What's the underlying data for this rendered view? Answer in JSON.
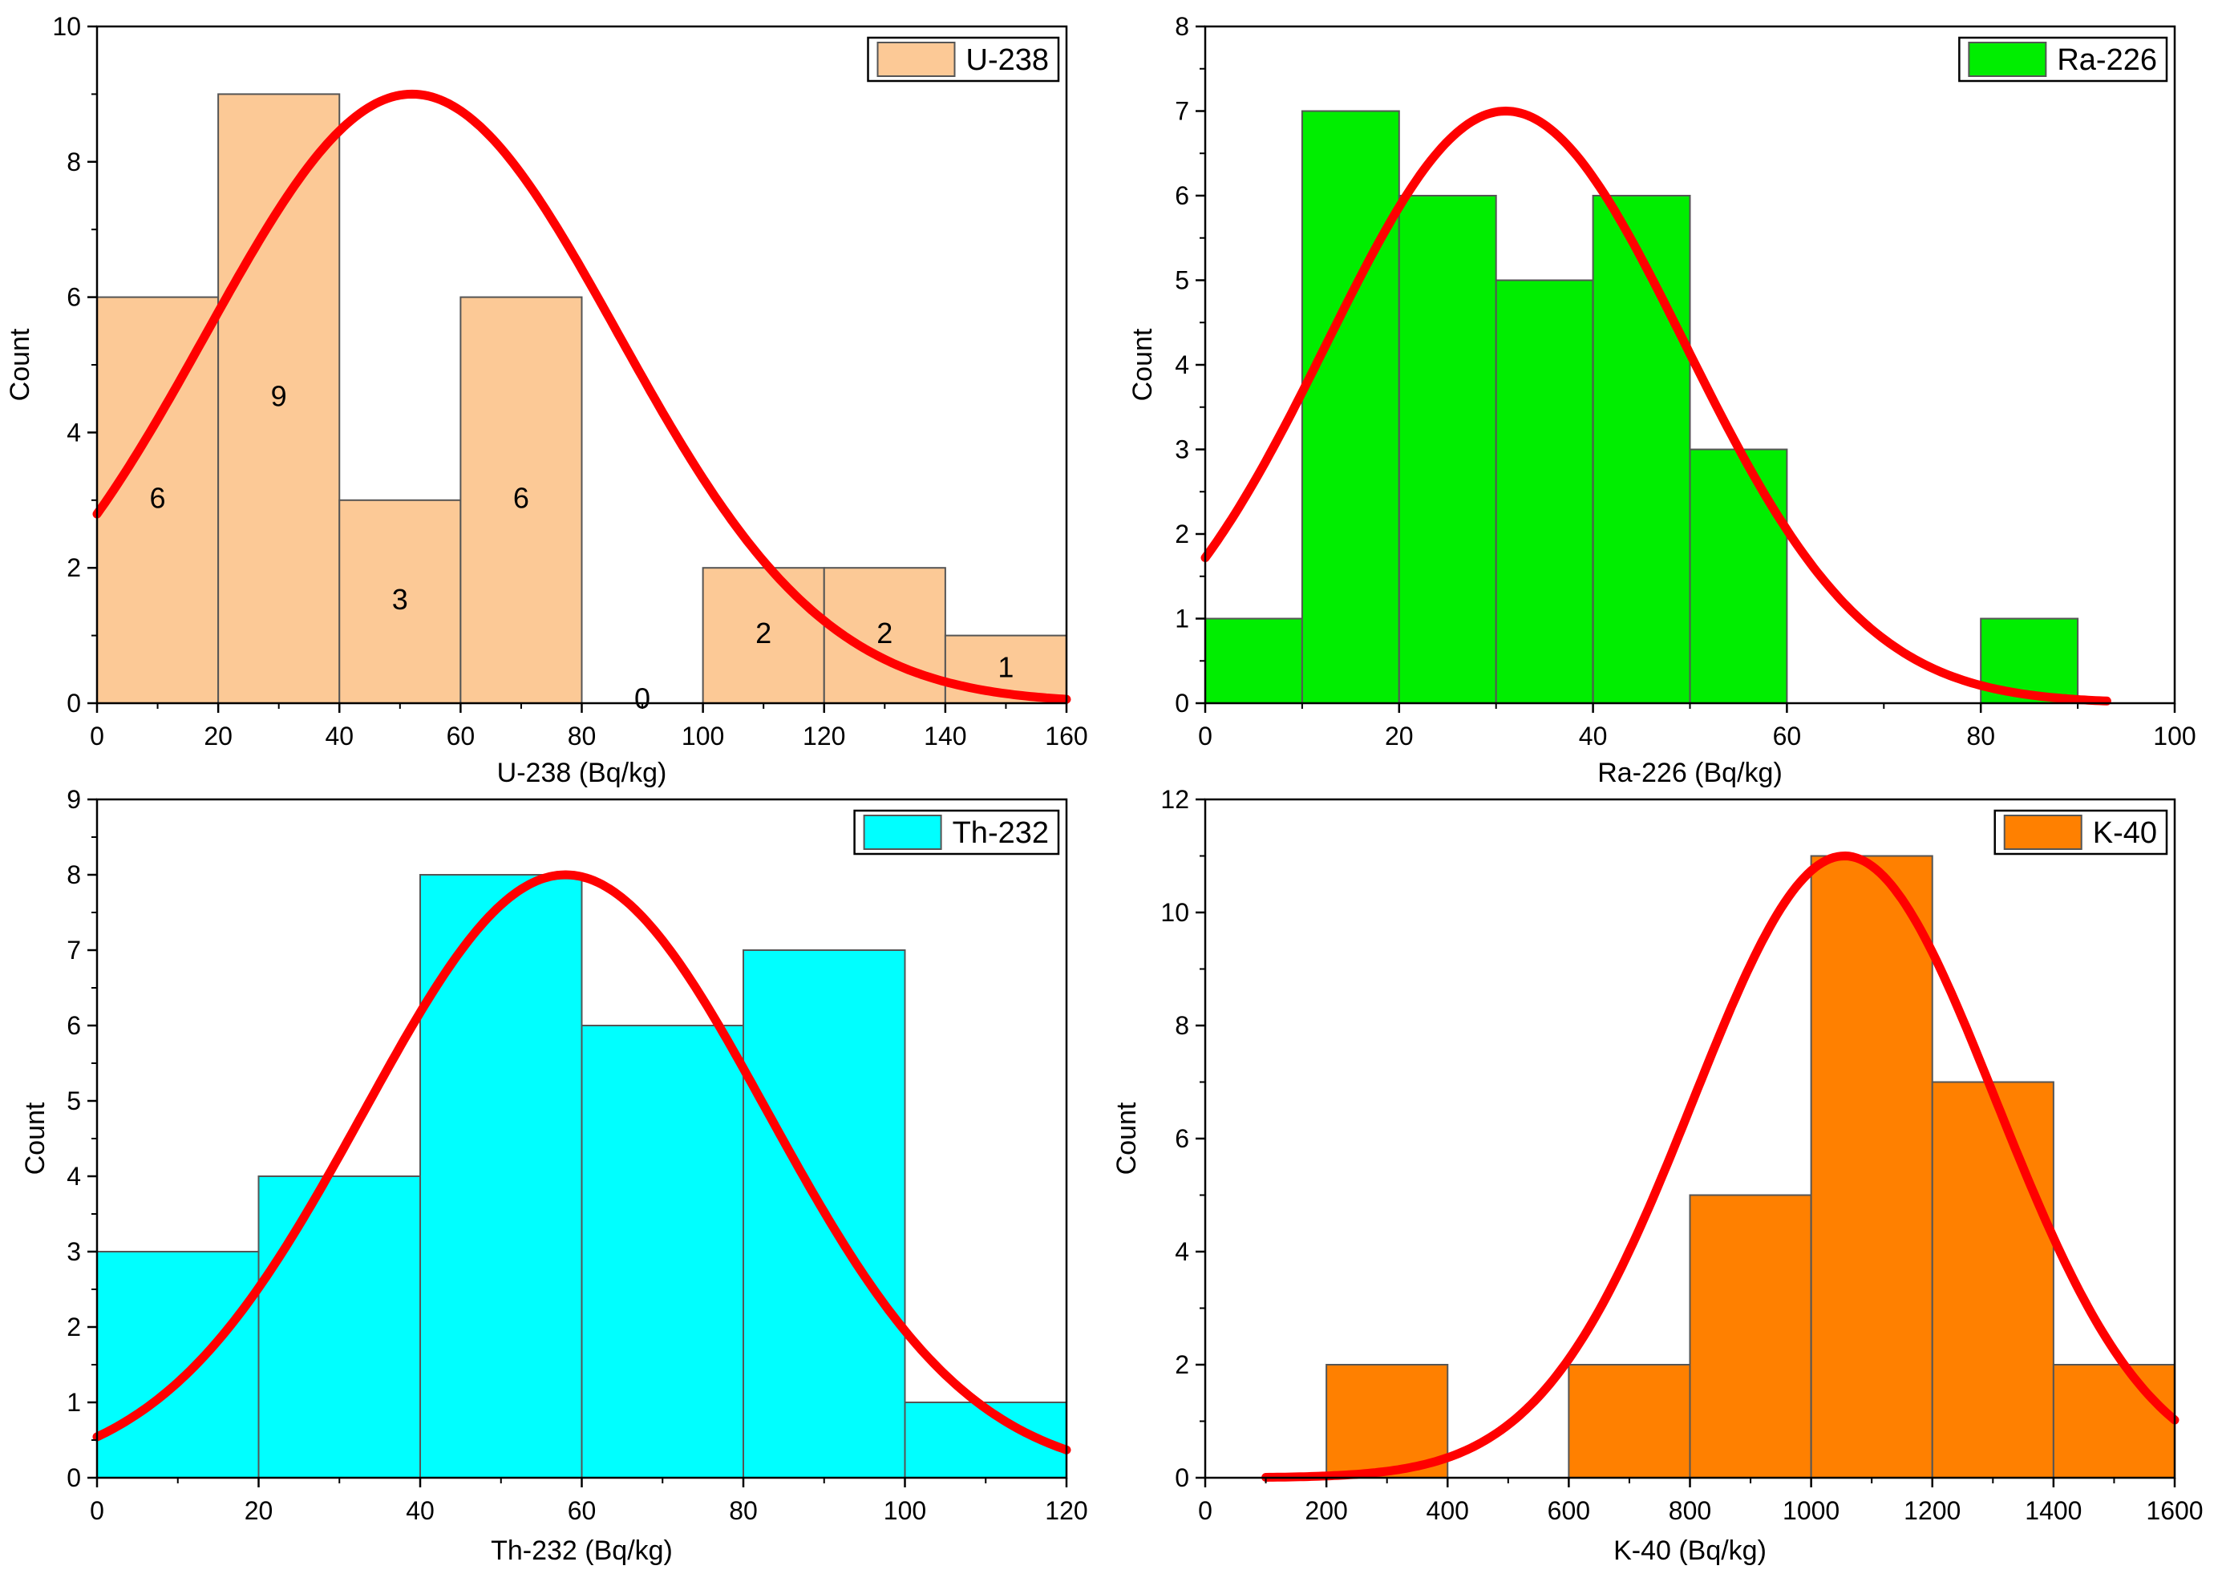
{
  "chart_data": [
    {
      "type": "bar",
      "subtype": "histogram",
      "panel": "top-left",
      "legend": "U-238",
      "legend_position": "top-right",
      "xlabel": "U-238 (Bq/kg)",
      "ylabel": "Count",
      "xlim": [
        0,
        160
      ],
      "ylim": [
        0,
        10
      ],
      "x_ticks": [
        0,
        20,
        40,
        60,
        80,
        100,
        120,
        140,
        160
      ],
      "y_ticks": [
        0,
        2,
        4,
        6,
        8,
        10
      ],
      "x_tick_labels": [
        "0",
        "20",
        "40",
        "60",
        "80",
        "100",
        "120",
        "140",
        "160"
      ],
      "y_tick_labels": [
        "0",
        "2",
        "4",
        "6",
        "8",
        "10"
      ],
      "bins": [
        [
          0,
          20
        ],
        [
          20,
          40
        ],
        [
          40,
          60
        ],
        [
          60,
          80
        ],
        [
          80,
          100
        ],
        [
          100,
          120
        ],
        [
          120,
          140
        ],
        [
          140,
          160
        ]
      ],
      "values": [
        6,
        9,
        3,
        6,
        0,
        2,
        2,
        1
      ],
      "data_labels": [
        "6",
        "9",
        "3",
        "6",
        "0",
        "2",
        "2",
        "1"
      ],
      "fill_color": "#fcc996",
      "fit": {
        "type": "normal",
        "mean": 52,
        "sd": 34,
        "peak": 9,
        "x_range": [
          0,
          160
        ],
        "color": "#ff0000"
      }
    },
    {
      "type": "bar",
      "subtype": "histogram",
      "panel": "top-right",
      "legend": "Ra-226",
      "legend_position": "top-right",
      "xlabel": "Ra-226 (Bq/kg)",
      "ylabel": "Count",
      "xlim": [
        0,
        100
      ],
      "ylim": [
        0,
        8
      ],
      "x_ticks": [
        0,
        20,
        40,
        60,
        80,
        100
      ],
      "y_ticks": [
        0,
        1,
        2,
        3,
        4,
        5,
        6,
        7,
        8
      ],
      "x_tick_labels": [
        "0",
        "20",
        "40",
        "60",
        "80",
        "100"
      ],
      "y_tick_labels": [
        "0",
        "1",
        "2",
        "3",
        "4",
        "5",
        "6",
        "7",
        "8"
      ],
      "bins": [
        [
          0,
          10
        ],
        [
          10,
          20
        ],
        [
          20,
          30
        ],
        [
          30,
          40
        ],
        [
          40,
          50
        ],
        [
          50,
          60
        ],
        [
          60,
          70
        ],
        [
          70,
          80
        ],
        [
          80,
          90
        ]
      ],
      "values": [
        1,
        7,
        6,
        5,
        6,
        3,
        0,
        0,
        1
      ],
      "fill_color": "#00ee00",
      "fit": {
        "type": "normal",
        "mean": 31,
        "sd": 18.5,
        "peak": 7,
        "x_range": [
          0,
          93
        ],
        "color": "#ff0000"
      }
    },
    {
      "type": "bar",
      "subtype": "histogram",
      "panel": "bottom-left",
      "legend": "Th-232",
      "legend_position": "top-right",
      "xlabel": "Th-232 (Bq/kg)",
      "ylabel": "Count",
      "xlim": [
        0,
        120
      ],
      "ylim": [
        0,
        9
      ],
      "x_ticks": [
        0,
        20,
        40,
        60,
        80,
        100,
        120
      ],
      "y_ticks": [
        0,
        1,
        2,
        3,
        4,
        5,
        6,
        7,
        8,
        9
      ],
      "x_tick_labels": [
        "0",
        "20",
        "40",
        "60",
        "80",
        "100",
        "120"
      ],
      "y_tick_labels": [
        "0",
        "1",
        "2",
        "3",
        "4",
        "5",
        "6",
        "7",
        "8",
        "9"
      ],
      "bins": [
        [
          0,
          20
        ],
        [
          20,
          40
        ],
        [
          40,
          60
        ],
        [
          60,
          80
        ],
        [
          80,
          100
        ],
        [
          100,
          120
        ]
      ],
      "values": [
        3,
        4,
        8,
        6,
        7,
        1
      ],
      "fill_color": "#00ffff",
      "fit": {
        "type": "normal",
        "mean": 58,
        "sd": 25,
        "peak": 8,
        "x_range": [
          0,
          120
        ],
        "color": "#ff0000"
      }
    },
    {
      "type": "bar",
      "subtype": "histogram",
      "panel": "bottom-right",
      "legend": "K-40",
      "legend_position": "top-right",
      "xlabel": "K-40 (Bq/kg)",
      "ylabel": "Count",
      "xlim": [
        0,
        1600
      ],
      "ylim": [
        0,
        12
      ],
      "x_ticks": [
        0,
        200,
        400,
        600,
        800,
        1000,
        1200,
        1400,
        1600
      ],
      "y_ticks": [
        0,
        2,
        4,
        6,
        8,
        10,
        12
      ],
      "x_tick_labels": [
        "0",
        "200",
        "400",
        "600",
        "800",
        "1000",
        "1200",
        "1400",
        "1600"
      ],
      "y_tick_labels": [
        "0",
        "2",
        "4",
        "6",
        "8",
        "10",
        "12"
      ],
      "bins": [
        [
          200,
          400
        ],
        [
          400,
          600
        ],
        [
          600,
          800
        ],
        [
          800,
          1000
        ],
        [
          1000,
          1200
        ],
        [
          1200,
          1400
        ],
        [
          1400,
          1600
        ]
      ],
      "values": [
        2,
        0,
        2,
        5,
        11,
        7,
        2
      ],
      "fill_color": "#ff8000",
      "fit": {
        "type": "normal",
        "mean": 1055,
        "sd": 250,
        "peak": 11,
        "x_range": [
          100,
          1600
        ],
        "color": "#ff0000"
      }
    }
  ]
}
